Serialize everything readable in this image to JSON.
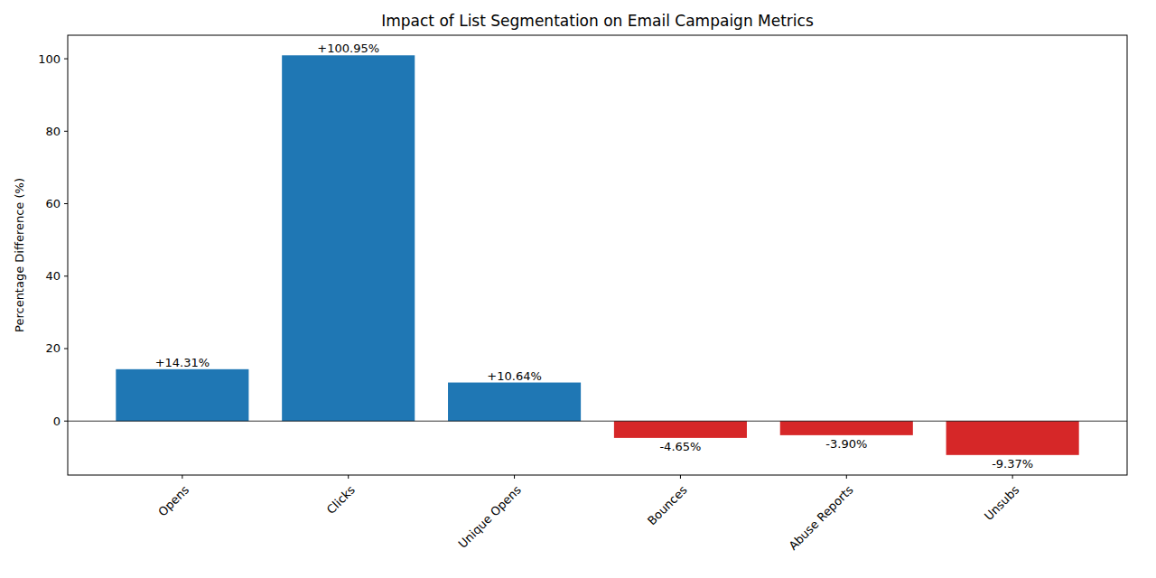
{
  "chart_data": {
    "type": "bar",
    "title": "Impact of List Segmentation on Email Campaign Metrics",
    "y_label": "Percentage Difference (%)",
    "categories": [
      "Opens",
      "Clicks",
      "Unique Opens",
      "Bounces",
      "Abuse Reports",
      "Unsubs"
    ],
    "values": [
      14.31,
      100.95,
      10.64,
      -4.65,
      -3.9,
      -9.37
    ],
    "value_labels": [
      "+14.31%",
      "+100.95%",
      "+10.64%",
      "-4.65%",
      "-3.90%",
      "-9.37%"
    ],
    "colors": [
      "#1f77b4",
      "#1f77b4",
      "#1f77b4",
      "#d62728",
      "#d62728",
      "#d62728"
    ],
    "ylim": [
      -14.9,
      106.5
    ],
    "yticks": [
      0,
      20,
      40,
      60,
      80,
      100
    ],
    "grid": false,
    "data_labels": true
  }
}
